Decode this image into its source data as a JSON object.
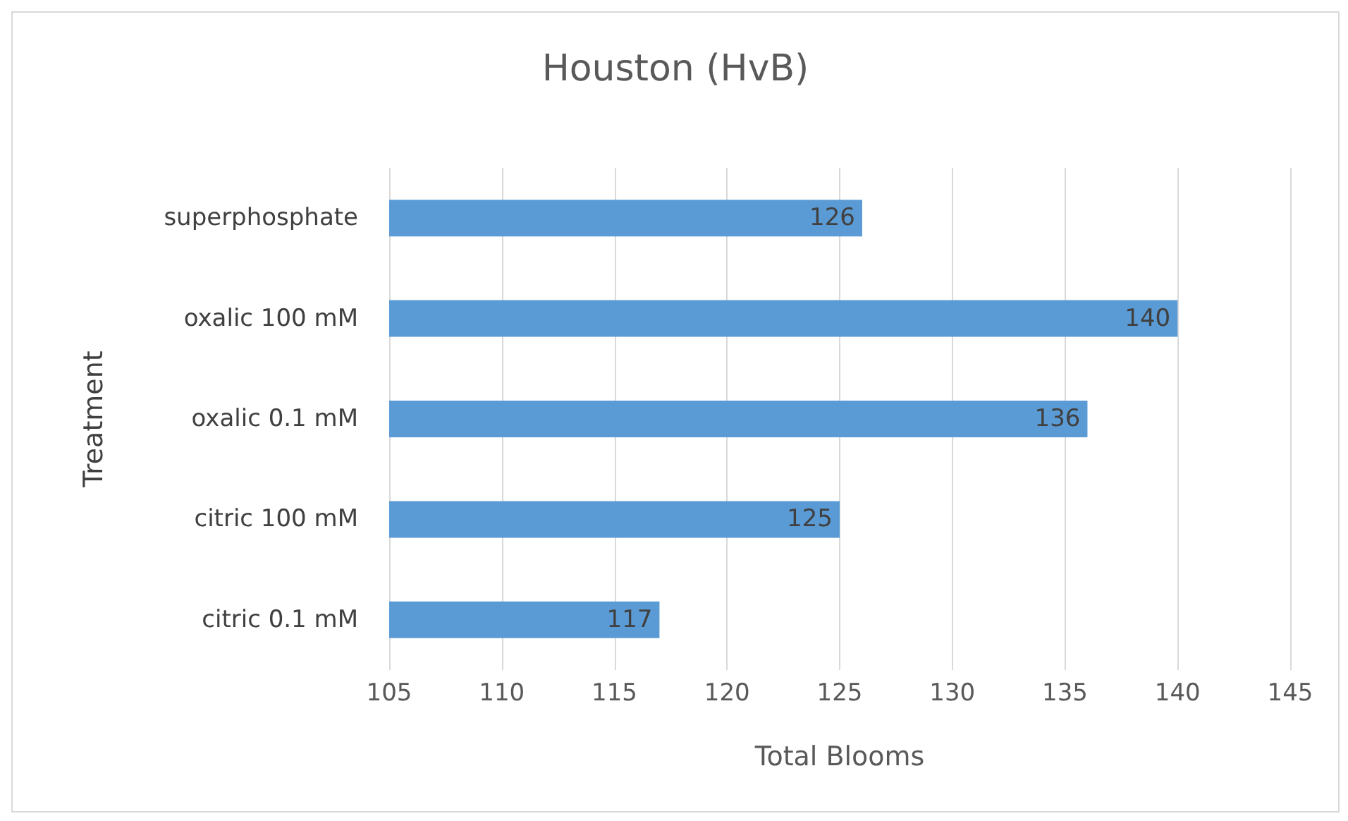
{
  "chart_data": {
    "type": "bar",
    "orientation": "horizontal",
    "title": "Houston (HvB)",
    "xlabel": "Total Blooms",
    "ylabel": "Treatment",
    "categories": [
      "superphosphate",
      "oxalic 100 mM",
      "oxalic 0.1 mM",
      "citric 100 mM",
      "citric 0.1 mM"
    ],
    "values": [
      126,
      140,
      136,
      125,
      117
    ],
    "color": "#5b9bd5",
    "xlim": [
      105,
      145
    ],
    "xticks": [
      105,
      110,
      115,
      120,
      125,
      130,
      135,
      140,
      145
    ],
    "grid": "x",
    "data_labels": true
  }
}
